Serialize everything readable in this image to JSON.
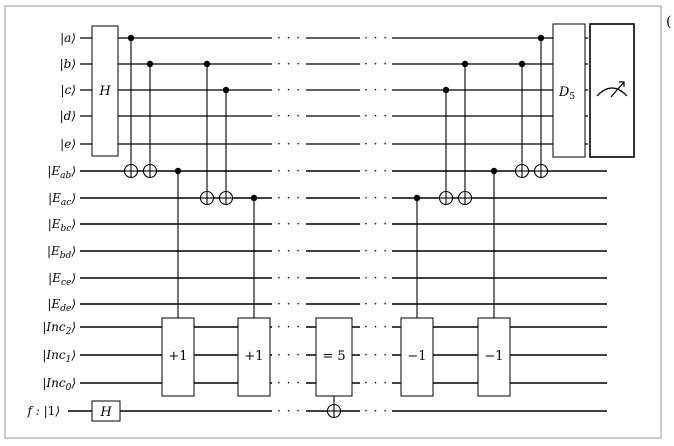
{
  "qubits": [
    {
      "label": "|a⟩"
    },
    {
      "label": "|b⟩"
    },
    {
      "label": "|c⟩"
    },
    {
      "label": "|d⟩"
    },
    {
      "label": "|e⟩"
    },
    {
      "label": "|Eab⟩",
      "base": "E",
      "sub": "ab"
    },
    {
      "label": "|Eac⟩",
      "base": "E",
      "sub": "ac"
    },
    {
      "label": "|Ebc⟩",
      "base": "E",
      "sub": "bc"
    },
    {
      "label": "|Ebd⟩",
      "base": "E",
      "sub": "bd"
    },
    {
      "label": "|Ece⟩",
      "base": "E",
      "sub": "ce"
    },
    {
      "label": "|Ede⟩",
      "base": "E",
      "sub": "de"
    },
    {
      "label": "|Inc2⟩",
      "base": "Inc",
      "sub": "2"
    },
    {
      "label": "|Inc1⟩",
      "base": "Inc",
      "sub": "1"
    },
    {
      "label": "|Inc0⟩",
      "base": "Inc",
      "sub": "0"
    },
    {
      "label": "f : |1⟩",
      "prefix": "f : ",
      "base": "1"
    }
  ],
  "gates": {
    "hadamard_top": "H",
    "hadamard_flag": "H",
    "diffusion": "D",
    "diffusion_sub": "5",
    "increment_1": "+1",
    "increment_2": "+1",
    "compare": "= 5",
    "decrement_1": "−1",
    "decrement_2": "−1"
  },
  "ellipsis": "· · ·",
  "corner_mark": "("
}
